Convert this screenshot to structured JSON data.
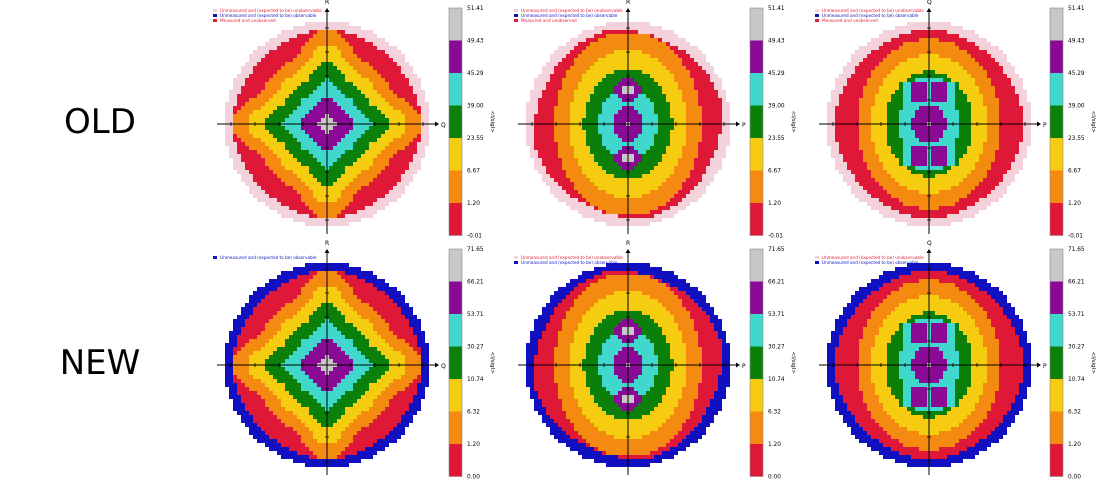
{
  "row_labels": {
    "old": "OLD",
    "new": "NEW"
  },
  "colors": {
    "unmeasured_unobservable": "#f3d2dc",
    "unmeasured_observable": "#1010c0",
    "measured_unobserved": "#e11f3a",
    "bins": [
      "#e01838",
      "#f58a10",
      "#f6cc10",
      "#0a7f0a",
      "#40d8cc",
      "#8a0a96",
      "#c8c8c8"
    ]
  },
  "legend_text": {
    "unmeasured_unobservable": "Unmeasured and (expected to be) unobservable",
    "unmeasured_observable": "Unmeasured and (expected to be) observable",
    "measured_unobserved": "Measured and unobserved"
  },
  "colorbar_title": "<I/sigI>",
  "chart_data": [
    {
      "type": "heatmap",
      "row": "OLD",
      "vertical_axis": "R",
      "horizontal_axis": "Q",
      "pattern": "cross-four-lobes",
      "fringe": "unmeasured_unobservable",
      "legend": [
        "unmeasured_unobservable",
        "unmeasured_observable",
        "measured_unobserved"
      ],
      "colorbar_ticks": [
        "51.41",
        "49.43",
        "45.29",
        "39.00",
        "23.55",
        "6.67",
        "1.20",
        "-0.01"
      ]
    },
    {
      "type": "heatmap",
      "row": "OLD",
      "vertical_axis": "R",
      "horizontal_axis": "P",
      "pattern": "two-poles",
      "fringe": "unmeasured_unobservable",
      "legend": [
        "unmeasured_unobservable",
        "unmeasured_observable",
        "measured_unobserved"
      ],
      "colorbar_ticks": [
        "51.41",
        "49.43",
        "45.29",
        "39.00",
        "23.55",
        "6.67",
        "1.20",
        "-0.01"
      ]
    },
    {
      "type": "heatmap",
      "row": "OLD",
      "vertical_axis": "Q",
      "horizontal_axis": "P",
      "pattern": "two-bowties",
      "fringe": "unmeasured_unobservable",
      "legend": [
        "unmeasured_unobservable",
        "unmeasured_observable",
        "measured_unobserved"
      ],
      "colorbar_ticks": [
        "51.41",
        "49.43",
        "45.29",
        "39.00",
        "23.55",
        "6.67",
        "1.20",
        "-0.01"
      ]
    },
    {
      "type": "heatmap",
      "row": "NEW",
      "vertical_axis": "R",
      "horizontal_axis": "Q",
      "pattern": "cross-four-lobes",
      "fringe": "unmeasured_observable",
      "legend": [
        "unmeasured_observable"
      ],
      "colorbar_ticks": [
        "71.65",
        "66.21",
        "53.71",
        "30.27",
        "10.74",
        "6.32",
        "1.20",
        "0.00"
      ]
    },
    {
      "type": "heatmap",
      "row": "NEW",
      "vertical_axis": "R",
      "horizontal_axis": "P",
      "pattern": "two-poles",
      "fringe": "unmeasured_observable",
      "legend": [
        "unmeasured_unobservable",
        "unmeasured_observable"
      ],
      "colorbar_ticks": [
        "71.65",
        "66.21",
        "53.71",
        "30.27",
        "10.74",
        "6.32",
        "1.20",
        "0.00"
      ]
    },
    {
      "type": "heatmap",
      "row": "NEW",
      "vertical_axis": "Q",
      "horizontal_axis": "P",
      "pattern": "two-bowties",
      "fringe": "unmeasured_observable",
      "legend": [
        "unmeasured_unobservable",
        "unmeasured_observable"
      ],
      "colorbar_ticks": [
        "71.65",
        "66.21",
        "53.71",
        "30.27",
        "10.74",
        "6.32",
        "1.20",
        "0.00"
      ]
    }
  ]
}
